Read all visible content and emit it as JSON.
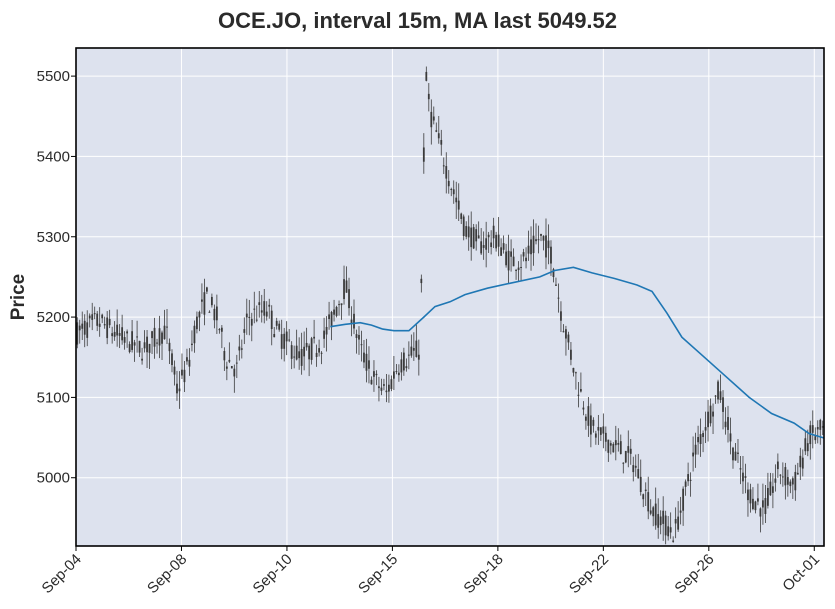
{
  "chart_data": {
    "type": "candlestick",
    "title": "OCE.JO, interval 15m, MA last 5049.52",
    "ylabel": "Price",
    "xlabel": "",
    "ylim": [
      4915,
      5535
    ],
    "y_ticks": [
      5000,
      5100,
      5200,
      5300,
      5400,
      5500
    ],
    "x_tick_labels": [
      "Sep-04",
      "Sep-08",
      "Sep-10",
      "Sep-15",
      "Sep-18",
      "Sep-22",
      "Sep-26",
      "Oct-01"
    ],
    "grid": true,
    "colors": {
      "plot_bg": "#dde2ee",
      "grid": "#ffffff",
      "candle": "#3a3a3a",
      "ma_line": "#1f77b4"
    },
    "price_path": [
      [
        0,
        5180
      ],
      [
        0.03,
        5195
      ],
      [
        0.06,
        5175
      ],
      [
        0.09,
        5160
      ],
      [
        0.12,
        5185
      ],
      [
        0.135,
        5110
      ],
      [
        0.15,
        5140
      ],
      [
        0.16,
        5190
      ],
      [
        0.175,
        5225
      ],
      [
        0.19,
        5195
      ],
      [
        0.2,
        5150
      ],
      [
        0.215,
        5135
      ],
      [
        0.23,
        5200
      ],
      [
        0.255,
        5210
      ],
      [
        0.27,
        5180
      ],
      [
        0.3,
        5150
      ],
      [
        0.33,
        5170
      ],
      [
        0.345,
        5205
      ],
      [
        0.36,
        5240
      ],
      [
        0.38,
        5160
      ],
      [
        0.4,
        5120
      ],
      [
        0.415,
        5105
      ],
      [
        0.43,
        5140
      ],
      [
        0.46,
        5160
      ],
      [
        0.467,
        5500
      ],
      [
        0.475,
        5450
      ],
      [
        0.5,
        5370
      ],
      [
        0.52,
        5310
      ],
      [
        0.54,
        5290
      ],
      [
        0.56,
        5300
      ],
      [
        0.58,
        5270
      ],
      [
        0.6,
        5270
      ],
      [
        0.62,
        5300
      ],
      [
        0.635,
        5280
      ],
      [
        0.65,
        5200
      ],
      [
        0.67,
        5120
      ],
      [
        0.69,
        5060
      ],
      [
        0.72,
        5040
      ],
      [
        0.745,
        5020
      ],
      [
        0.77,
        4960
      ],
      [
        0.8,
        4930
      ],
      [
        0.83,
        5040
      ],
      [
        0.86,
        5110
      ],
      [
        0.88,
        5030
      ],
      [
        0.9,
        4980
      ],
      [
        0.92,
        4960
      ],
      [
        0.94,
        5010
      ],
      [
        0.96,
        4990
      ],
      [
        0.98,
        5050
      ],
      [
        1.0,
        5060
      ]
    ],
    "moving_average": [
      [
        0.34,
        5188
      ],
      [
        0.36,
        5191
      ],
      [
        0.38,
        5193
      ],
      [
        0.395,
        5190
      ],
      [
        0.41,
        5185
      ],
      [
        0.425,
        5183
      ],
      [
        0.445,
        5183
      ],
      [
        0.465,
        5200
      ],
      [
        0.48,
        5213
      ],
      [
        0.5,
        5219
      ],
      [
        0.52,
        5228
      ],
      [
        0.55,
        5236
      ],
      [
        0.58,
        5242
      ],
      [
        0.62,
        5250
      ],
      [
        0.64,
        5258
      ],
      [
        0.665,
        5262
      ],
      [
        0.69,
        5255
      ],
      [
        0.72,
        5248
      ],
      [
        0.75,
        5240
      ],
      [
        0.77,
        5232
      ],
      [
        0.79,
        5205
      ],
      [
        0.81,
        5175
      ],
      [
        0.84,
        5150
      ],
      [
        0.87,
        5125
      ],
      [
        0.9,
        5100
      ],
      [
        0.93,
        5080
      ],
      [
        0.96,
        5068
      ],
      [
        0.98,
        5055
      ],
      [
        1.0,
        5049.52
      ]
    ]
  }
}
